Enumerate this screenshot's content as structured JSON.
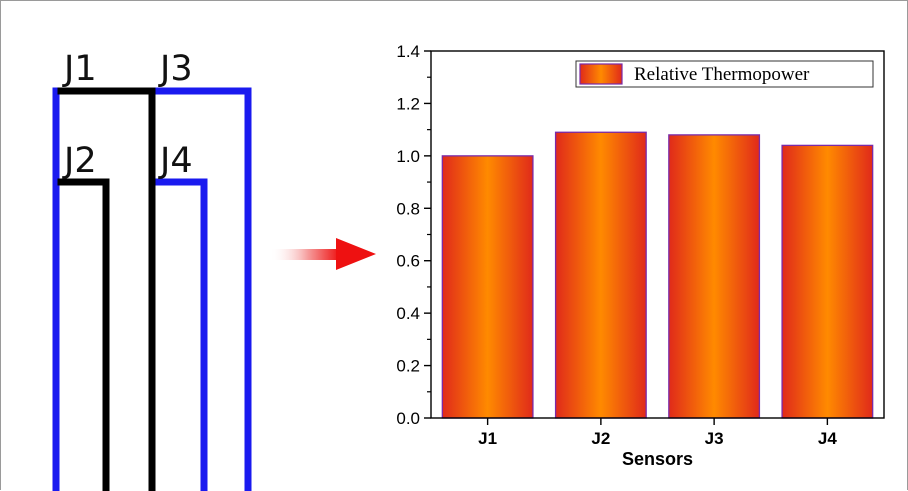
{
  "diagram": {
    "labels": {
      "j1": "J1",
      "j2": "J2",
      "j3": "J3",
      "j4": "J4"
    },
    "colors": {
      "blue_wire": "#1a1aef",
      "black_wire": "#000000",
      "arrow": "#ee1111"
    }
  },
  "chart_data": {
    "type": "bar",
    "categories": [
      "J1",
      "J2",
      "J3",
      "J4"
    ],
    "series": [
      {
        "name": "Relative Thermopower",
        "values": [
          1.0,
          1.09,
          1.08,
          1.04
        ]
      }
    ],
    "xlabel": "Sensors",
    "ylabel": "",
    "ylim": [
      0,
      1.4
    ],
    "yticks": [
      "0.0",
      "0.2",
      "0.4",
      "0.6",
      "0.8",
      "1.0",
      "1.2",
      "1.4"
    ],
    "legend_position": "top-right",
    "grid": false,
    "colors": {
      "bar_center": "#ff8a00",
      "bar_edge": "#e02a1a",
      "bar_border": "#7a2aa8"
    }
  }
}
